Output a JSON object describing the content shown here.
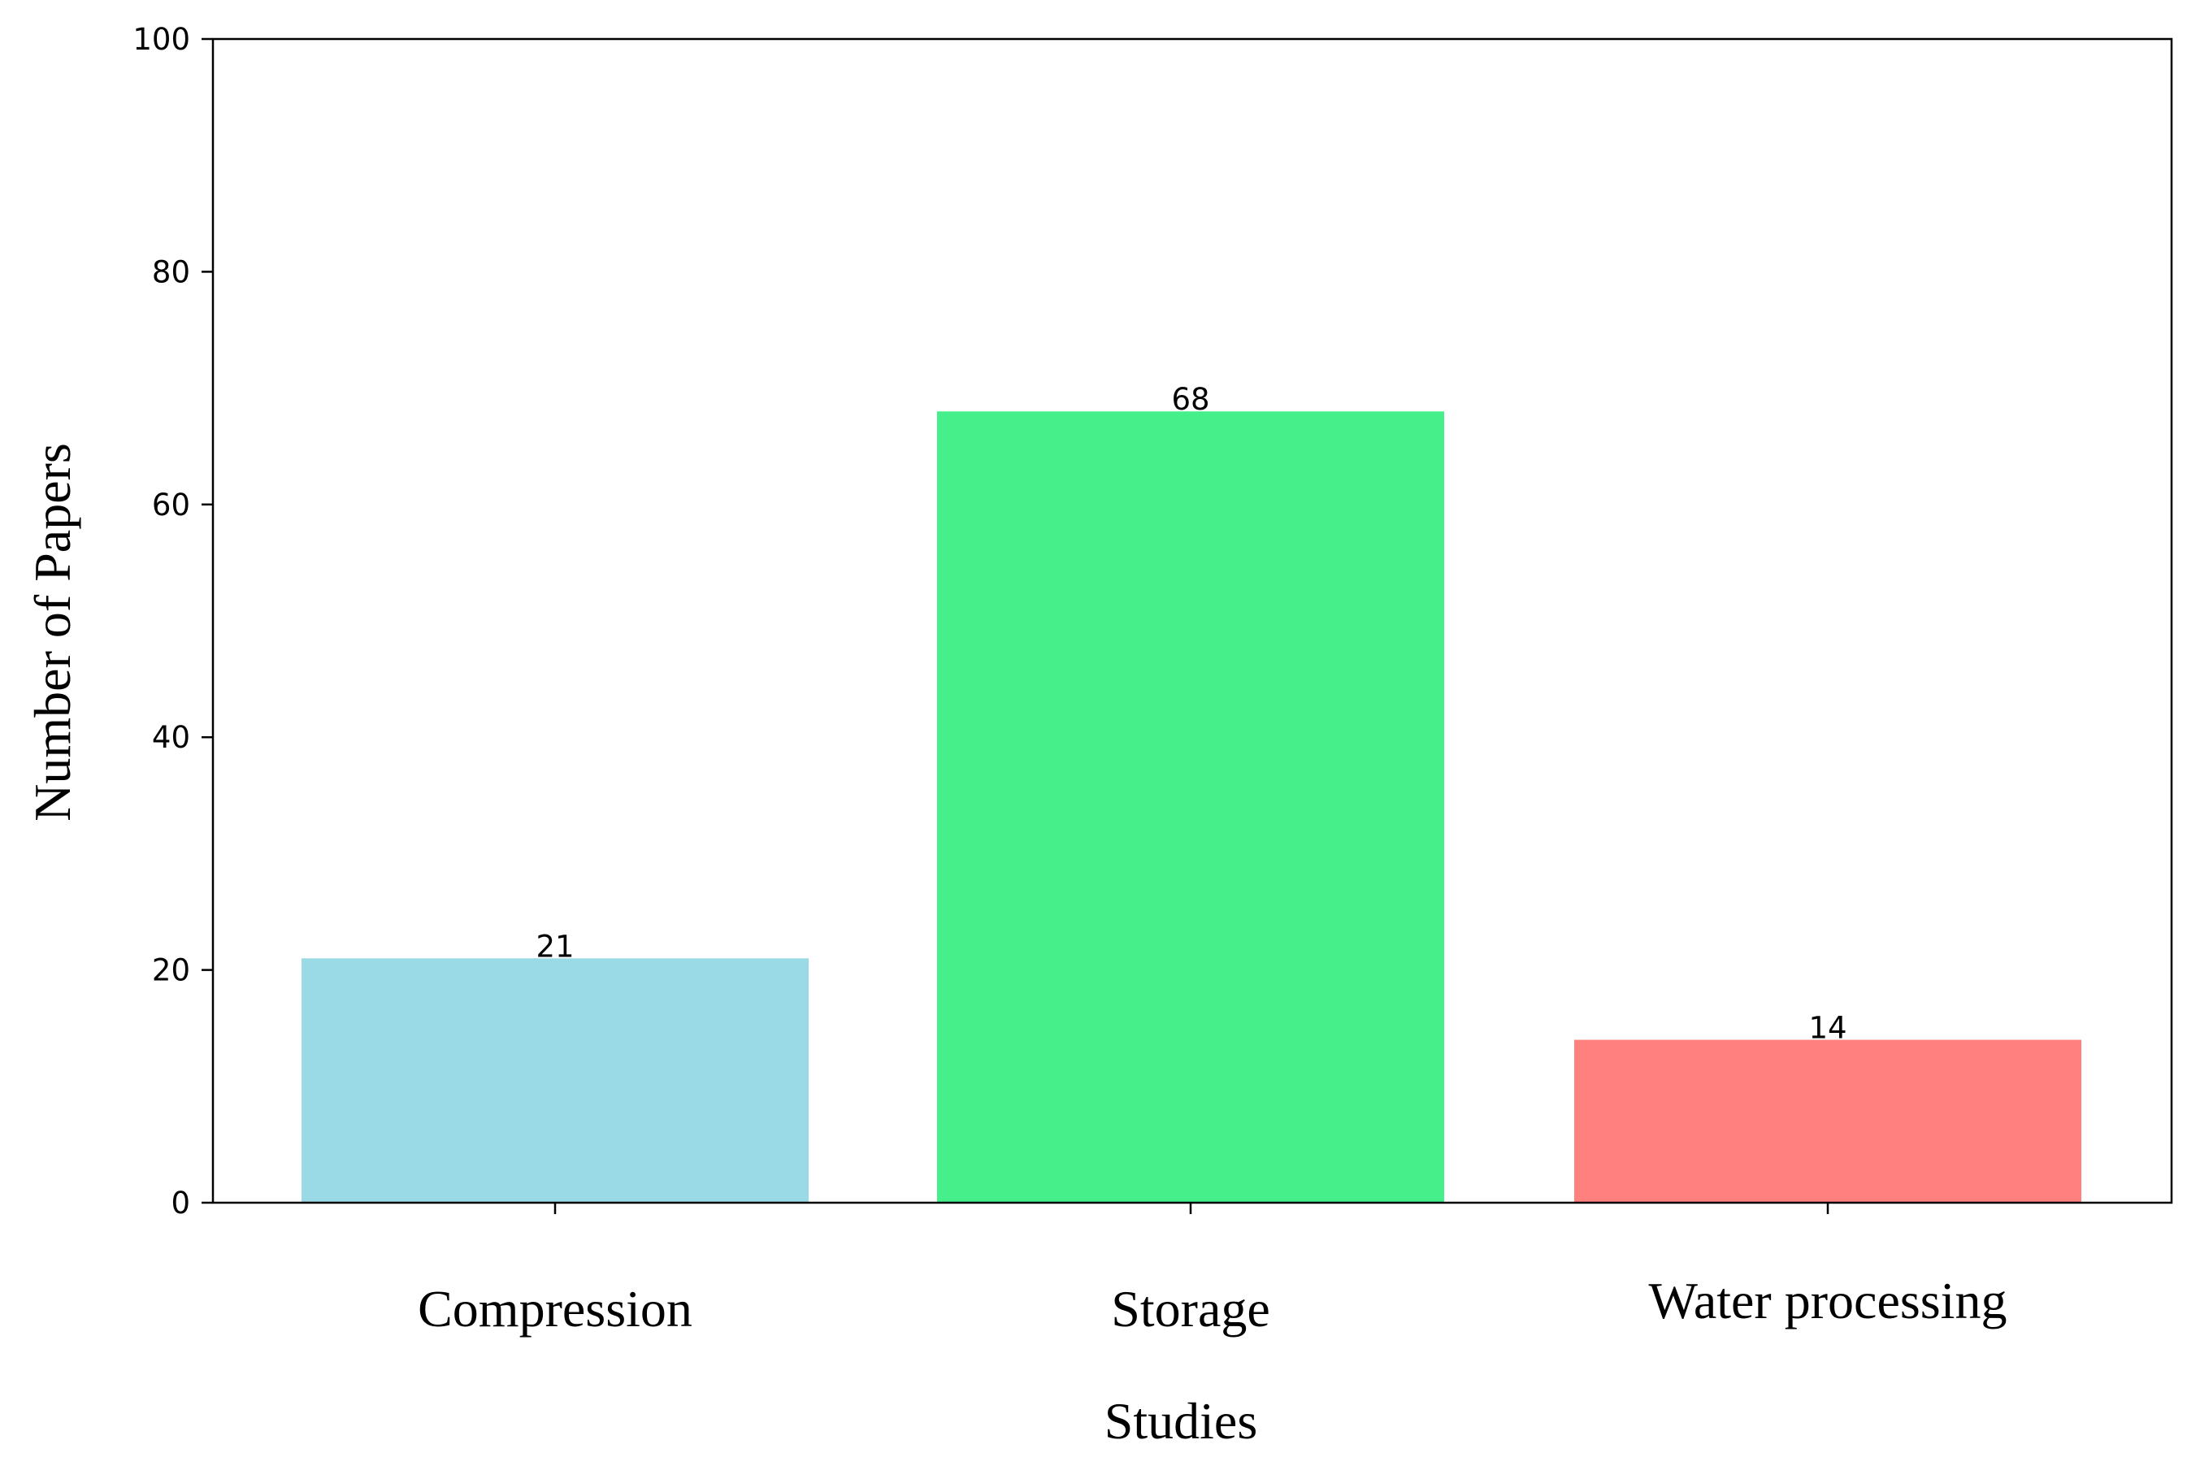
{
  "chart_data": {
    "type": "bar",
    "title": "",
    "xlabel": "Studies",
    "ylabel": "Number of Papers",
    "categories": [
      "Compression",
      "Storage",
      "Water processing"
    ],
    "values": [
      21,
      68,
      14
    ],
    "colors": [
      "#9ad9e6",
      "#45f08a",
      "#ff807d"
    ],
    "ylim": [
      0,
      100
    ],
    "yticks": [
      "0",
      "20",
      "40",
      "60",
      "80",
      "100"
    ],
    "data_labels": [
      "21",
      "68",
      "14"
    ],
    "grid": false,
    "legend": "none"
  }
}
